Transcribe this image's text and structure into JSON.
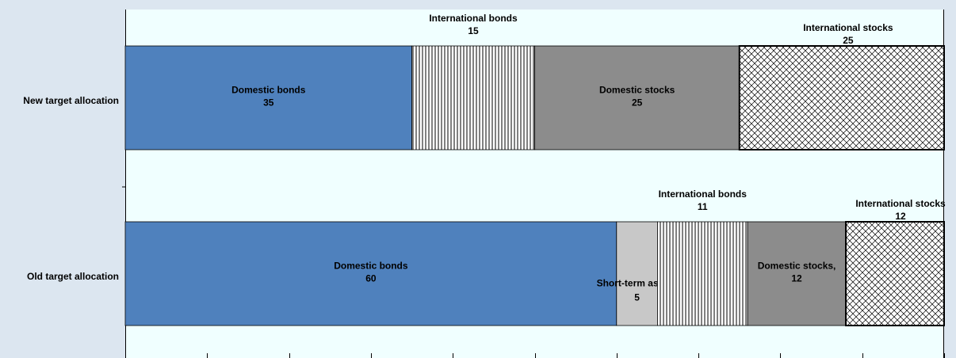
{
  "chart_data": {
    "type": "bar",
    "orientation": "horizontal",
    "stacked": true,
    "categories": [
      "New target allocation",
      "Old target allocation"
    ],
    "bars": [
      {
        "category": "New target allocation",
        "segments": [
          {
            "name": "Domestic bonds",
            "value": 35,
            "label_line1": "Domestic bonds",
            "label_line2": "35",
            "style": "solid",
            "color": "#4f81bd"
          },
          {
            "name": "International bonds",
            "value": 15,
            "label_line1": "International bonds",
            "label_line2": "15",
            "style": "vertical-lines",
            "color": "#ffffff"
          },
          {
            "name": "Domestic stocks",
            "value": 25,
            "label_line1": "Domestic stocks",
            "label_line2": "25",
            "style": "solid",
            "color": "#8c8c8c"
          },
          {
            "name": "International stocks",
            "value": 25,
            "label_line1": "International stocks",
            "label_line2": "25",
            "style": "crosshatch",
            "color": "#ffffff"
          }
        ]
      },
      {
        "category": "Old target allocation",
        "segments": [
          {
            "name": "Domestic bonds",
            "value": 60,
            "label_line1": "Domestic bonds",
            "label_line2": "60",
            "style": "solid",
            "color": "#4f81bd"
          },
          {
            "name": "Short-term assets",
            "value": 5,
            "label_line1": "Short-term assets",
            "label_line2": "5",
            "style": "solid",
            "color": "#c8c8c8"
          },
          {
            "name": "International bonds",
            "value": 11,
            "label_line1": "International bonds",
            "label_line2": "11",
            "style": "vertical-lines",
            "color": "#ffffff"
          },
          {
            "name": "Domestic stocks",
            "value": 12,
            "label_line1": "Domestic stocks,",
            "label_line2": "12",
            "style": "solid",
            "color": "#8c8c8c"
          },
          {
            "name": "International stocks",
            "value": 12,
            "label_line1": "International stocks",
            "label_line2": "12",
            "style": "crosshatch",
            "color": "#ffffff"
          }
        ]
      }
    ],
    "xlim": [
      0,
      100
    ],
    "x_ticks": [
      0,
      10,
      20,
      30,
      40,
      50,
      60,
      70,
      80,
      90,
      100
    ],
    "x_tick_labels_visible": false,
    "grid": false,
    "legend": "none",
    "title": "",
    "xlabel": "",
    "ylabel": "",
    "colors": {
      "plot_background": "#f0ffff",
      "page_background": "#dce6f0",
      "bar_outline": "#000000"
    }
  }
}
